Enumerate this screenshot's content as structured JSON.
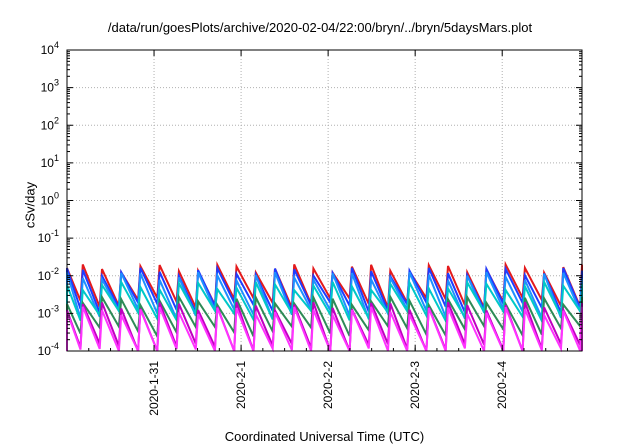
{
  "chart_data": {
    "type": "line",
    "title": "/data/run/goesPlots/archive/2020-02-04/22:00/bryn/../bryn/5daysMars.plot",
    "xlabel": "Coordinated Universal Time (UTC)",
    "ylabel": "cSv/day",
    "y_scale": "log",
    "ylim": [
      0.0001,
      10000
    ],
    "xlim": [
      "2020-01-30 00:00",
      "2020-02-04 22:00"
    ],
    "x_ticks": [
      "2020-1-31",
      "2020-2-1",
      "2020-2-2",
      "2020-2-3",
      "2020-2-4"
    ],
    "y_ticks": [
      {
        "base": "10",
        "exp": "-4"
      },
      {
        "base": "10",
        "exp": "-3"
      },
      {
        "base": "10",
        "exp": "-2"
      },
      {
        "base": "10",
        "exp": "-1"
      },
      {
        "base": "10",
        "exp": "0"
      },
      {
        "base": "10",
        "exp": "1"
      },
      {
        "base": "10",
        "exp": "2"
      },
      {
        "base": "10",
        "exp": "3"
      },
      {
        "base": "10",
        "exp": "4"
      }
    ],
    "grid": true,
    "legend": "none",
    "series": [
      {
        "color": "#e41a1c",
        "peak": 0.016,
        "trough": 0.002
      },
      {
        "color": "#1f3cff",
        "peak": 0.013,
        "trough": 0.0015
      },
      {
        "color": "#1e90ff",
        "peak": 0.01,
        "trough": 0.001
      },
      {
        "color": "#00c8c8",
        "peak": 0.0055,
        "trough": 0.0009
      },
      {
        "color": "#2e8b57",
        "peak": 0.0022,
        "trough": 0.00035
      },
      {
        "color": "#c000c0",
        "peak": 0.0016,
        "trough": 0.00012
      },
      {
        "color": "#ff33ff",
        "peak": 0.0012,
        "trough": 9e-05
      }
    ],
    "cycle_hours": 5.3
  }
}
